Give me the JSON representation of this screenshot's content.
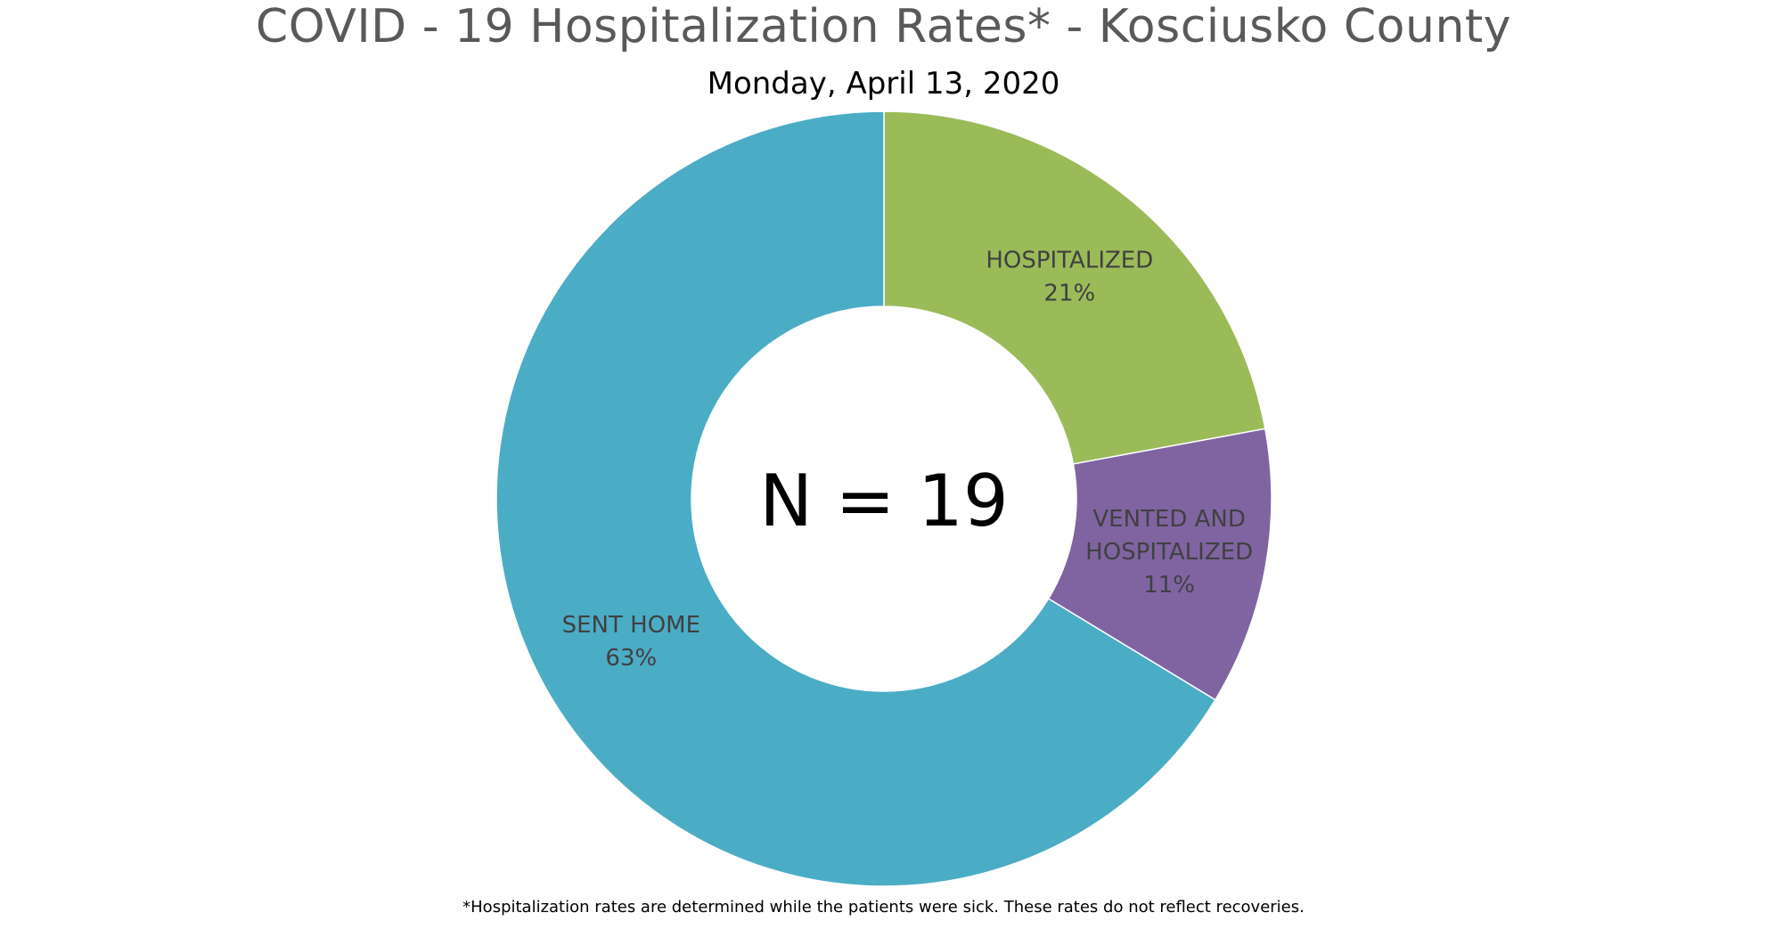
{
  "chart_data": {
    "type": "pie",
    "style": "donut",
    "title": "COVID - 19 Hospitalization Rates* - Kosciusko County",
    "subtitle": "Monday, April 13, 2020",
    "center_label": "N = 19",
    "footnote": "*Hospitalization rates are determined while the patients were sick. These rates do not reflect recoveries.",
    "slices": [
      {
        "label": "HOSPITALIZED",
        "label_lines": [
          "HOSPITALIZED"
        ],
        "value": 21,
        "value_label": "21%",
        "color": "#9BBB59"
      },
      {
        "label": "VENTED AND HOSPITALIZED",
        "label_lines": [
          "VENTED AND",
          "HOSPITALIZED"
        ],
        "value": 11,
        "value_label": "11%",
        "color": "#8064A2"
      },
      {
        "label": "SENT HOME",
        "label_lines": [
          "SENT HOME"
        ],
        "value": 63,
        "value_label": "63%",
        "color": "#4BACC6"
      }
    ],
    "legend": "none"
  }
}
